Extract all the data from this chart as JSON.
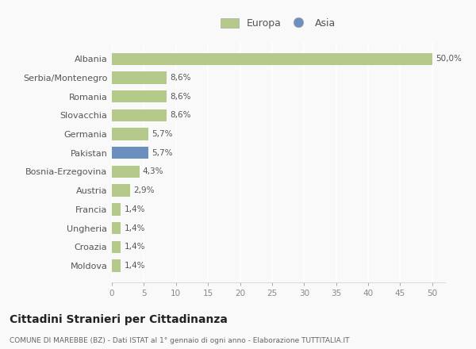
{
  "categories": [
    "Albania",
    "Serbia/Montenegro",
    "Romania",
    "Slovacchia",
    "Germania",
    "Pakistan",
    "Bosnia-Erzegovina",
    "Austria",
    "Francia",
    "Ungheria",
    "Croazia",
    "Moldova"
  ],
  "values": [
    50.0,
    8.6,
    8.6,
    8.6,
    5.7,
    5.7,
    4.3,
    2.9,
    1.4,
    1.4,
    1.4,
    1.4
  ],
  "colors": [
    "#b5c98a",
    "#b5c98a",
    "#b5c98a",
    "#b5c98a",
    "#b5c98a",
    "#6b8fbf",
    "#b5c98a",
    "#b5c98a",
    "#b5c98a",
    "#b5c98a",
    "#b5c98a",
    "#b5c98a"
  ],
  "labels": [
    "50,0%",
    "8,6%",
    "8,6%",
    "8,6%",
    "5,7%",
    "5,7%",
    "4,3%",
    "2,9%",
    "1,4%",
    "1,4%",
    "1,4%",
    "1,4%"
  ],
  "europa_color": "#b5c98a",
  "asia_color": "#6b8fbf",
  "xlim": [
    0,
    52
  ],
  "xticks": [
    0,
    5,
    10,
    15,
    20,
    25,
    30,
    35,
    40,
    45,
    50
  ],
  "title1": "Cittadini Stranieri per Cittadinanza",
  "title2": "COMUNE DI MAREBBE (BZ) - Dati ISTAT al 1° gennaio di ogni anno - Elaborazione TUTTITALIA.IT",
  "bg_color": "#f9f9f9",
  "grid_color": "#ffffff"
}
